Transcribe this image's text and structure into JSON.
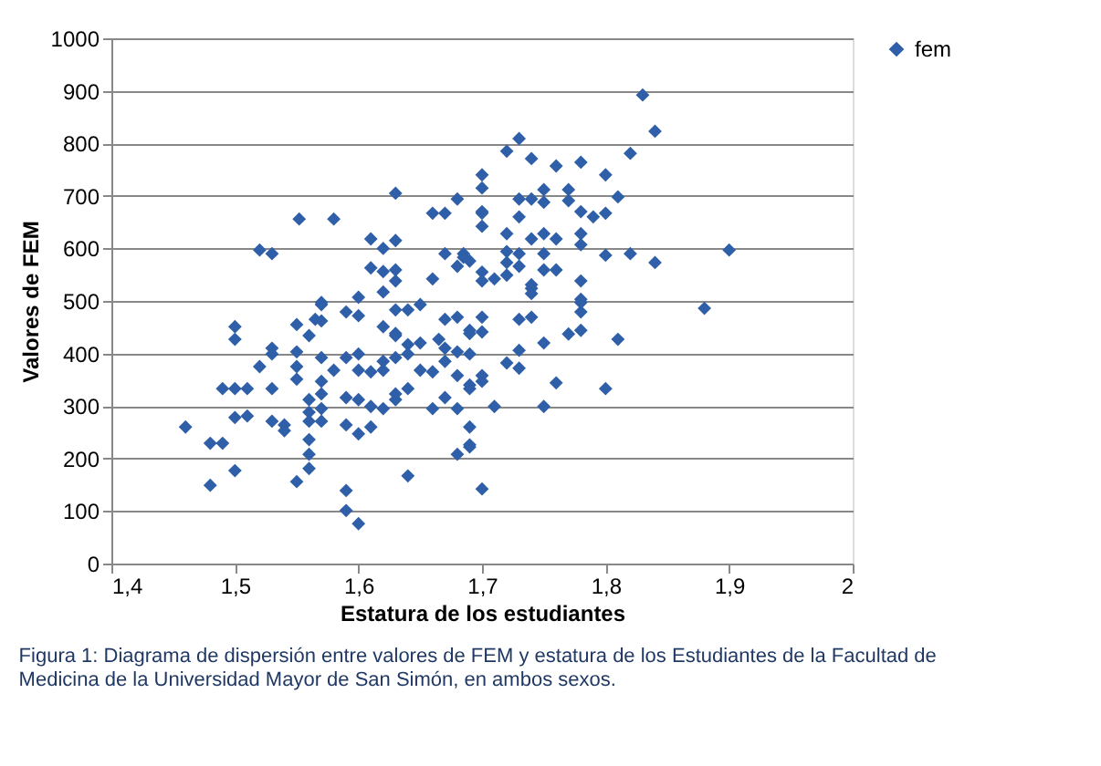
{
  "chart_data": {
    "type": "scatter",
    "xlabel": "Estatura de los estudiantes",
    "ylabel": "Valores de FEM",
    "annotations": [
      "Figura 1: Diagrama de dispersión entre valores de FEM y estatura de los Estudiantes de la Facultad de Medicina de la Universidad Mayor de San Simón, en ambos sexos."
    ],
    "xlim": [
      1.4,
      2.0
    ],
    "xticks": [
      {
        "value": 1.4,
        "label": "1,4"
      },
      {
        "value": 1.5,
        "label": "1,5"
      },
      {
        "value": 1.6,
        "label": "1,6"
      },
      {
        "value": 1.7,
        "label": "1,7"
      },
      {
        "value": 1.8,
        "label": "1,8"
      },
      {
        "value": 1.9,
        "label": "1,9"
      },
      {
        "value": 2.0,
        "label": "2"
      }
    ],
    "ylim": [
      0,
      1000
    ],
    "yticks": [
      0,
      100,
      200,
      300,
      400,
      500,
      600,
      700,
      800,
      900,
      1000
    ],
    "grid": "y",
    "legend": "right",
    "marker": "diamond",
    "series": [
      {
        "name": "fem",
        "color": "#2e5fa8",
        "x": [
          1.83,
          1.84,
          1.82,
          1.8,
          1.81,
          1.78,
          1.76,
          1.74,
          1.72,
          1.73,
          1.7,
          1.7,
          1.73,
          1.74,
          1.75,
          1.75,
          1.77,
          1.77,
          1.78,
          1.79,
          1.8,
          1.7,
          1.7,
          1.73,
          1.72,
          1.74,
          1.75,
          1.76,
          1.78,
          1.78,
          1.8,
          1.82,
          1.84,
          1.9,
          1.685,
          1.69,
          1.72,
          1.73,
          1.72,
          1.73,
          1.7,
          1.71,
          1.7,
          1.72,
          1.75,
          1.76,
          1.75,
          1.74,
          1.74,
          1.78,
          1.78,
          1.88,
          1.74,
          1.78,
          1.78,
          1.7,
          1.69,
          1.7,
          1.73,
          1.74,
          1.77,
          1.78,
          1.81,
          1.75,
          1.69,
          1.73,
          1.72,
          1.73,
          1.7,
          1.69,
          1.7,
          1.76,
          1.8,
          1.71,
          1.75,
          1.69,
          1.69,
          1.7,
          1.63,
          1.552,
          1.58,
          1.52,
          1.53,
          1.61,
          1.63,
          1.62,
          1.61,
          1.62,
          1.63,
          1.63,
          1.6,
          1.62,
          1.66,
          1.67,
          1.68,
          1.7,
          1.67,
          1.68,
          1.685,
          1.66,
          1.57,
          1.565,
          1.57,
          1.59,
          1.6,
          1.63,
          1.64,
          1.65,
          1.67,
          1.68,
          1.5,
          1.5,
          1.55,
          1.56,
          1.57,
          1.62,
          1.63,
          1.63,
          1.64,
          1.65,
          1.665,
          1.67,
          1.68,
          1.69,
          1.53,
          1.53,
          1.52,
          1.55,
          1.55,
          1.57,
          1.58,
          1.59,
          1.6,
          1.62,
          1.63,
          1.64,
          1.6,
          1.61,
          1.62,
          1.65,
          1.66,
          1.67,
          1.68,
          1.69,
          1.55,
          1.57,
          1.57,
          1.64,
          1.49,
          1.5,
          1.51,
          1.53,
          1.59,
          1.6,
          1.61,
          1.62,
          1.63,
          1.63,
          1.66,
          1.67,
          1.68,
          1.56,
          1.56,
          1.56,
          1.57,
          1.57,
          1.5,
          1.51,
          1.53,
          1.54,
          1.54,
          1.46,
          1.59,
          1.6,
          1.61,
          1.48,
          1.49,
          1.56,
          1.56,
          1.56,
          1.69,
          1.68,
          1.5,
          1.48,
          1.55,
          1.64,
          1.59,
          1.59,
          1.6
        ],
        "values": [
          892,
          823,
          781,
          740,
          698,
          764,
          757,
          771,
          785,
          809,
          740,
          715,
          694,
          694,
          712,
          688,
          712,
          691,
          670,
          660,
          667,
          670,
          642,
          660,
          628,
          618,
          628,
          618,
          628,
          607,
          587,
          590,
          573,
          597,
          590,
          576,
          594,
          590,
          573,
          566,
          555,
          542,
          538,
          549,
          590,
          559,
          559,
          531,
          524,
          538,
          497,
          486,
          514,
          503,
          479,
          469,
          444,
          441,
          465,
          469,
          437,
          444,
          427,
          420,
          399,
          406,
          382,
          372,
          358,
          333,
          347,
          344,
          333,
          299,
          299,
          260,
          222,
          142,
          705,
          656,
          656,
          597,
          590,
          618,
          615,
          600,
          563,
          556,
          559,
          538,
          507,
          517,
          667,
          667,
          694,
          667,
          590,
          566,
          583,
          542,
          497,
          465,
          493,
          479,
          472,
          483,
          483,
          493,
          465,
          469,
          451,
          427,
          455,
          434,
          462,
          451,
          438,
          434,
          417,
          420,
          427,
          410,
          403,
          438,
          410,
          399,
          375,
          403,
          375,
          392,
          368,
          392,
          399,
          385,
          392,
          399,
          368,
          365,
          368,
          368,
          365,
          385,
          358,
          340,
          351,
          347,
          323,
          333,
          333,
          333,
          333,
          333,
          316,
          312,
          299,
          295,
          323,
          312,
          295,
          316,
          295,
          312,
          288,
          271,
          295,
          271,
          278,
          281,
          271,
          264,
          253,
          260,
          264,
          247,
          260,
          229,
          229,
          236,
          208,
          181,
          226,
          208,
          177,
          149,
          156,
          167,
          139,
          101,
          76
        ]
      }
    ]
  }
}
